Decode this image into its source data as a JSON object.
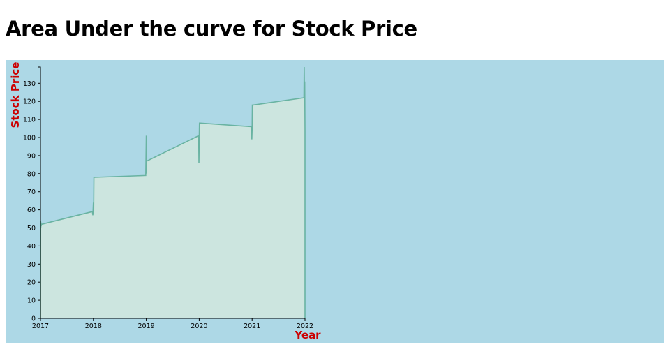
{
  "page": {
    "heading": "Area Under the curve for Stock Price"
  },
  "colors": {
    "plot_background": "#add8e6",
    "area_fill": "#cce5df",
    "line_stroke": "#69b3a2",
    "axis_title": "#cc0000",
    "axis": "#000000"
  },
  "chart_data": {
    "type": "area",
    "title": "Area Under the curve for Stock Price",
    "xlabel": "Year",
    "ylabel": "Stock Price",
    "xlim": [
      2017,
      2022
    ],
    "ylim": [
      0,
      139
    ],
    "x_ticks": [
      "2017",
      "2018",
      "2019",
      "2020",
      "2021",
      "2022"
    ],
    "y_ticks": [
      "0",
      "10",
      "20",
      "30",
      "40",
      "50",
      "60",
      "70",
      "80",
      "90",
      "100",
      "110",
      "120",
      "130"
    ],
    "grid": false,
    "legend": "none",
    "series": [
      {
        "x": [
          2017.0,
          2017.003,
          2017.006,
          2017.009,
          2017.013,
          2017.02,
          2017.98,
          2017.99,
          2018.0,
          2018.005,
          2018.01,
          2018.02,
          2018.99,
          2019.0,
          2019.003,
          2019.006,
          2019.01,
          2019.99,
          2019.995,
          2020.0,
          2020.005,
          2020.02,
          2020.99,
          2020.995,
          2021.0,
          2021.005,
          2021.02,
          2021.98,
          2021.985,
          2021.99,
          2021.995,
          2022.0
        ],
        "y": [
          0,
          54,
          50,
          53,
          51,
          52,
          59,
          57,
          64,
          58,
          78,
          78,
          79,
          101,
          80,
          87,
          87,
          101,
          86,
          99,
          108,
          108,
          106,
          99,
          104,
          118,
          118,
          122,
          139,
          123,
          131,
          104
        ]
      }
    ]
  }
}
